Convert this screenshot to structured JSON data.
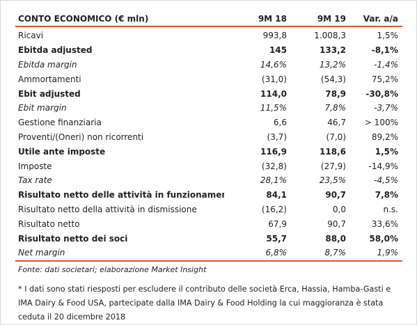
{
  "header": {
    "label": "CONTO ECONOMICO (€ mln)",
    "col1": "9M 18",
    "col2": "9M 19",
    "col3": "Var. a/a"
  },
  "rows": [
    {
      "label": "Ricavi",
      "v1": "993,8",
      "v2": "1.008,3",
      "v3": "1,5%",
      "style": "normal"
    },
    {
      "label": "Ebitda adjusted",
      "v1": "145",
      "v2": "133,2",
      "v3": "-8,1%",
      "style": "bold"
    },
    {
      "label": "Ebitda margin",
      "v1": "14,6%",
      "v2": "13,2%",
      "v3": "-1,4%",
      "style": "italic"
    },
    {
      "label": "Ammortamenti",
      "v1": "(31,0)",
      "v2": "(54,3)",
      "v3": "75,2%",
      "style": "normal"
    },
    {
      "label": "Ebit adjusted",
      "v1": "114,0",
      "v2": "78,9",
      "v3": "-30,8%",
      "style": "bold"
    },
    {
      "label": "Ebit margin",
      "v1": "11,5%",
      "v2": "7,8%",
      "v3": "-3,7%",
      "style": "italic"
    },
    {
      "label": "Gestione finanziaria",
      "v1": "6,6",
      "v2": "46,7",
      "v3": "> 100%",
      "style": "normal"
    },
    {
      "label": "Proventi/(Oneri) non ricorrenti",
      "v1": "(3,7)",
      "v2": "(7,0)",
      "v3": "89,2%",
      "style": "normal"
    },
    {
      "label": "Utile ante imposte",
      "v1": "116,9",
      "v2": "118,6",
      "v3": "1,5%",
      "style": "bold"
    },
    {
      "label": "Imposte",
      "v1": "(32,8)",
      "v2": "(27,9)",
      "v3": "-14,9%",
      "style": "normal"
    },
    {
      "label": "Tax rate",
      "v1": "28,1%",
      "v2": "23,5%",
      "v3": "-4,5%",
      "style": "italic"
    },
    {
      "label": "Risultato netto delle attività in funzionamento",
      "v1": "84,1",
      "v2": "90,7",
      "v3": "7,8%",
      "style": "bold"
    },
    {
      "label": "Risultato netto della attività in dismissione",
      "v1": "(16,2)",
      "v2": "0,0",
      "v3": "n.s.",
      "style": "normal"
    },
    {
      "label": "Risultato netto",
      "v1": "67,9",
      "v2": "90,7",
      "v3": "33,6%",
      "style": "normal"
    },
    {
      "label": "Risultato netto dei soci",
      "v1": "55,7",
      "v2": "88,0",
      "v3": "58,0%",
      "style": "bold"
    },
    {
      "label": "Net margin",
      "v1": "6,8%",
      "v2": "8,7%",
      "v3": "1,9%",
      "style": "italic"
    }
  ],
  "source": "Fonte: dati societari; elaborazione Market Insight",
  "note": "* I dati sono stati riesposti per escludere il contributo delle società Erca, Hassia, Hamba-Gasti e IMA Dairy & Food USA, partecipate dalla IMA Dairy & Food Holding la cui maggioranza è stata ceduta il 20 dicembre 2018"
}
